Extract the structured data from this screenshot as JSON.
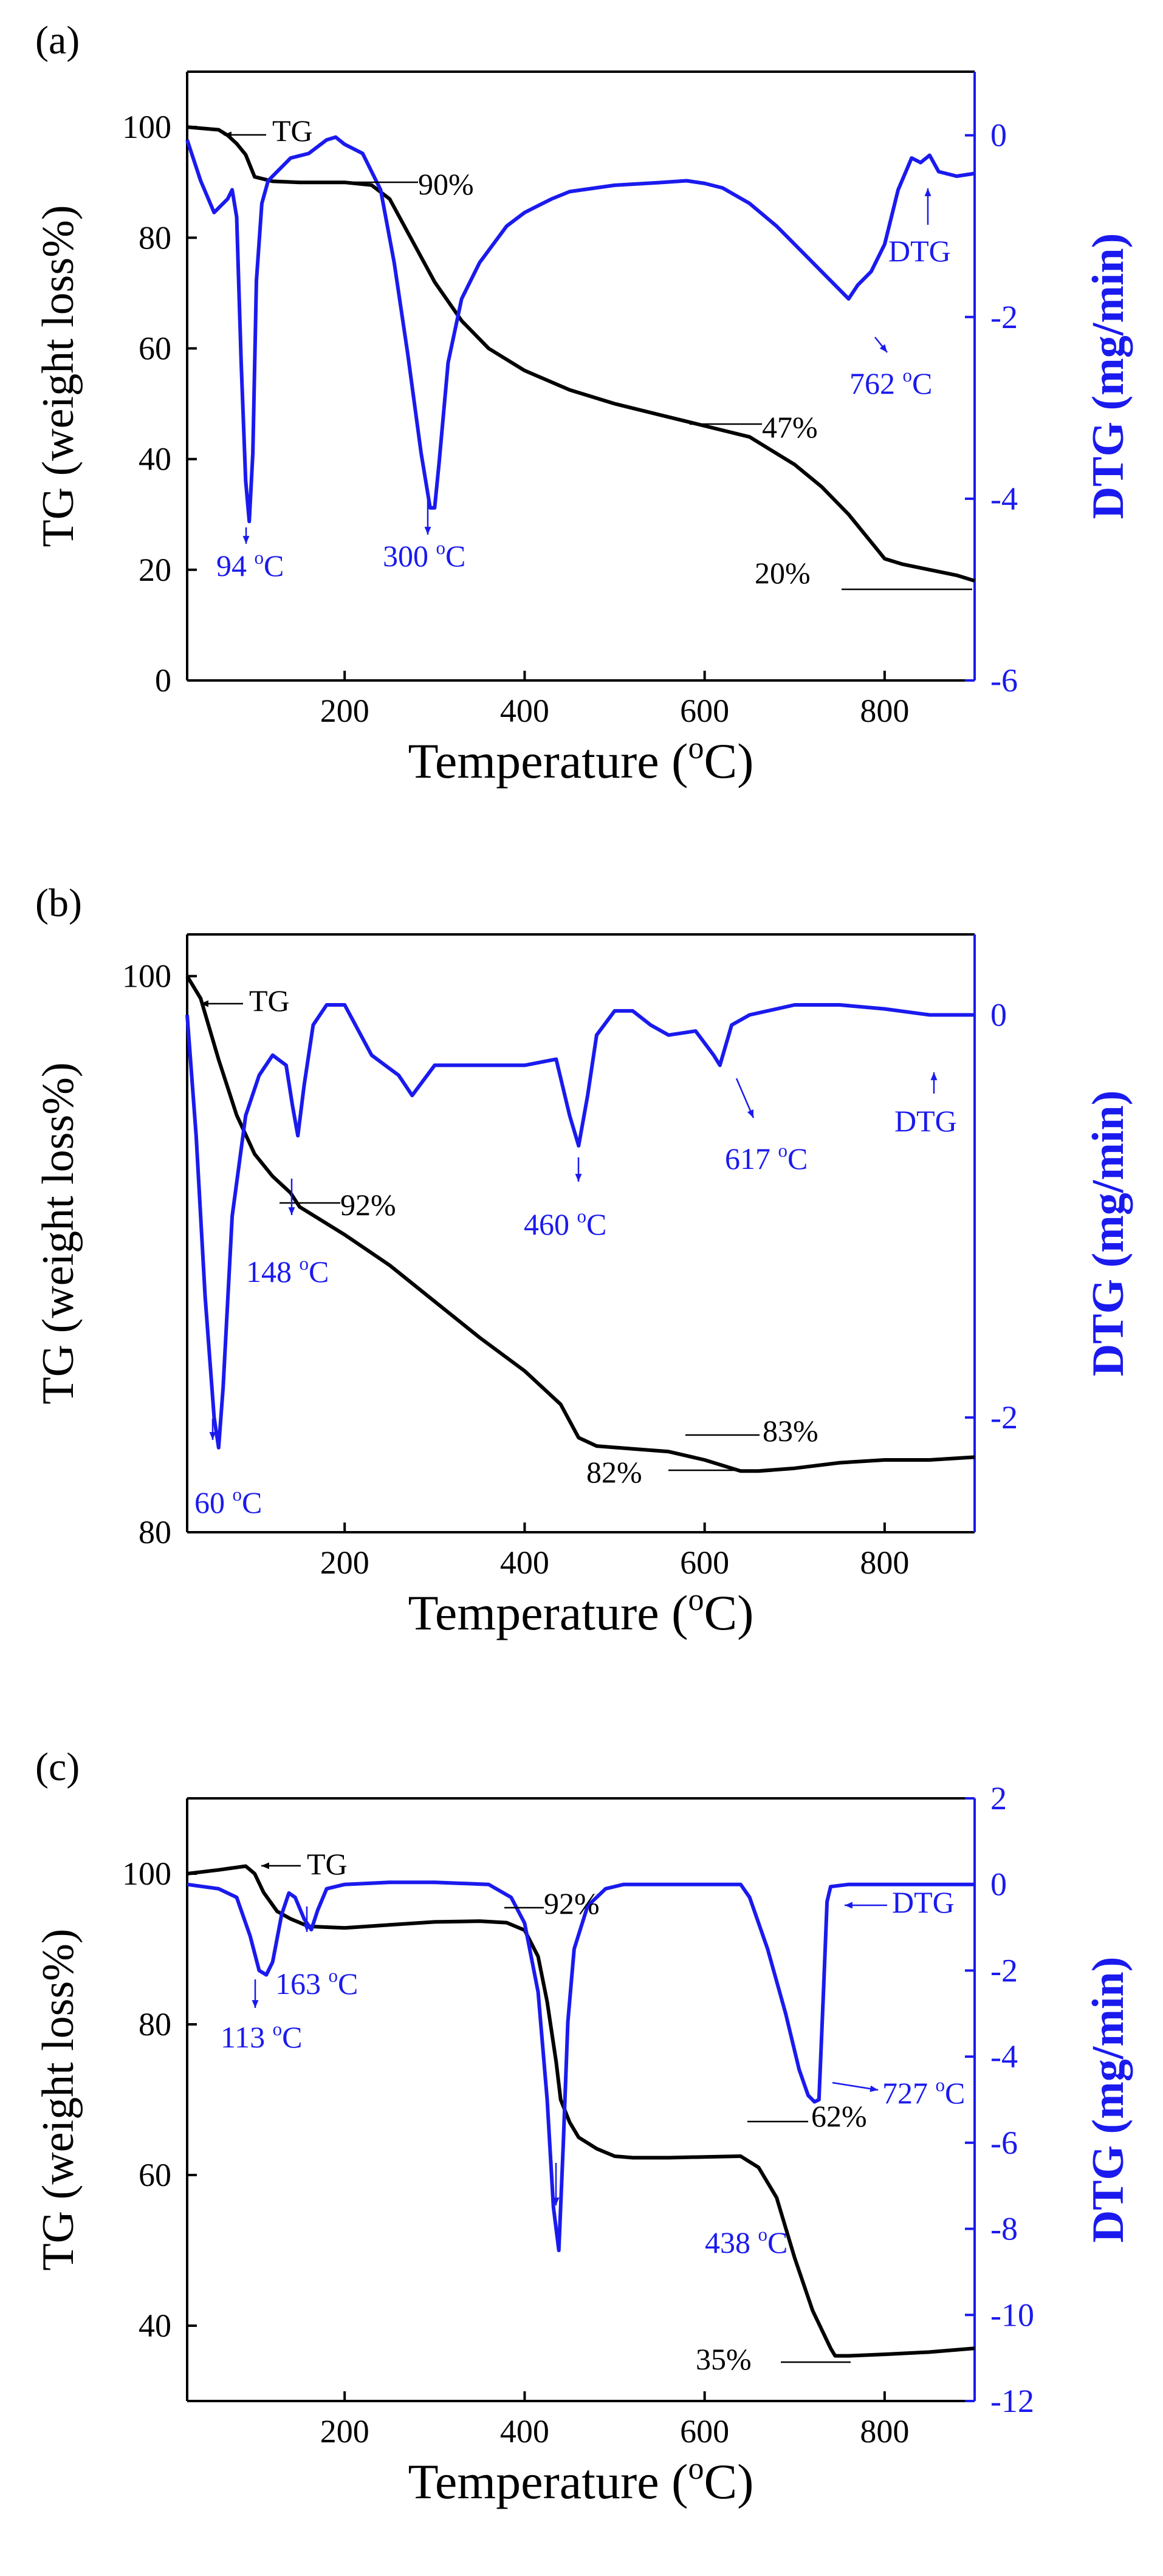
{
  "chart_data": [
    {
      "type": "line",
      "panel_label": "(a)",
      "xlabel": "Temperature (",
      "xlabel_sup": "o",
      "xlabel_tail": "C)",
      "ylabel_left": "TG (weight loss%)",
      "ylabel_right": "DTG (mg/min)",
      "xlim": [
        25,
        900
      ],
      "ylim_left": [
        0,
        110
      ],
      "ylim_right": [
        -6,
        0.7
      ],
      "xticks": [
        200,
        400,
        600,
        800
      ],
      "yticks_left": [
        0,
        20,
        40,
        60,
        80,
        100
      ],
      "yticks_right": [
        -6,
        -4,
        -2,
        0
      ],
      "series": [
        {
          "name": "TG",
          "axis": "left",
          "x": [
            25,
            60,
            70,
            80,
            90,
            100,
            120,
            150,
            200,
            230,
            250,
            270,
            300,
            330,
            360,
            400,
            450,
            500,
            550,
            600,
            650,
            700,
            730,
            760,
            790,
            800,
            820,
            850,
            880,
            900
          ],
          "y": [
            100,
            99.5,
            98.5,
            97,
            95,
            91,
            90.2,
            90,
            90,
            89.5,
            87,
            81,
            72,
            65,
            60,
            56,
            52.5,
            50,
            48,
            46,
            44,
            39,
            35,
            30,
            24,
            22,
            21,
            20,
            19,
            18
          ]
        },
        {
          "name": "DTG",
          "axis": "right",
          "x": [
            25,
            40,
            55,
            70,
            75,
            80,
            85,
            90,
            94,
            98,
            102,
            108,
            115,
            125,
            140,
            160,
            180,
            190,
            200,
            220,
            240,
            255,
            270,
            285,
            295,
            300,
            305,
            315,
            330,
            350,
            380,
            400,
            430,
            450,
            500,
            550,
            580,
            600,
            620,
            650,
            680,
            700,
            730,
            760,
            770,
            785,
            800,
            815,
            830,
            840,
            850,
            860,
            880,
            900
          ],
          "y": [
            -0.05,
            -0.5,
            -0.85,
            -0.7,
            -0.6,
            -0.9,
            -2.5,
            -3.8,
            -4.25,
            -3.5,
            -1.6,
            -0.75,
            -0.5,
            -0.4,
            -0.25,
            -0.2,
            -0.05,
            -0.02,
            -0.1,
            -0.2,
            -0.6,
            -1.4,
            -2.4,
            -3.5,
            -4.1,
            -4.1,
            -3.6,
            -2.5,
            -1.8,
            -1.4,
            -1.0,
            -0.85,
            -0.7,
            -0.62,
            -0.55,
            -0.52,
            -0.5,
            -0.53,
            -0.58,
            -0.75,
            -1.0,
            -1.2,
            -1.5,
            -1.8,
            -1.65,
            -1.5,
            -1.2,
            -0.6,
            -0.25,
            -0.3,
            -0.22,
            -0.4,
            -0.45,
            -0.42
          ]
        }
      ],
      "annotations": [
        {
          "text": "TG",
          "color": "black"
        },
        {
          "text": "90%",
          "color": "black"
        },
        {
          "text": "47%",
          "color": "black"
        },
        {
          "text": "20%",
          "color": "black"
        },
        {
          "text": "94 ",
          "sup": "o",
          "tail": "C",
          "color": "blue"
        },
        {
          "text": "300 ",
          "sup": "o",
          "tail": "C",
          "color": "blue"
        },
        {
          "text": "762 ",
          "sup": "o",
          "tail": "C",
          "color": "blue"
        },
        {
          "text": "DTG",
          "color": "blue"
        }
      ]
    },
    {
      "type": "line",
      "panel_label": "(b)",
      "xlabel": "Temperature (",
      "xlabel_sup": "o",
      "xlabel_tail": "C)",
      "ylabel_left": "TG (weight loss%)",
      "ylabel_right": "DTG (mg/min)",
      "xlim": [
        25,
        900
      ],
      "ylim_left": [
        80,
        101.5
      ],
      "ylim_right": [
        -2.57,
        0.4
      ],
      "xticks": [
        200,
        400,
        600,
        800
      ],
      "yticks_left": [
        80,
        100
      ],
      "yticks_right": [
        -2,
        0
      ],
      "series": [
        {
          "name": "TG",
          "axis": "left",
          "x": [
            25,
            40,
            60,
            80,
            100,
            120,
            140,
            150,
            170,
            200,
            250,
            300,
            350,
            400,
            440,
            460,
            480,
            520,
            560,
            600,
            640,
            660,
            700,
            750,
            800,
            850,
            900
          ],
          "y": [
            100,
            99.2,
            97,
            95,
            93.6,
            92.8,
            92.2,
            91.7,
            91.3,
            90.7,
            89.6,
            88.3,
            87,
            85.8,
            84.6,
            83.4,
            83.1,
            83,
            82.9,
            82.6,
            82.2,
            82.2,
            82.3,
            82.5,
            82.6,
            82.6,
            82.7
          ]
        },
        {
          "name": "DTG",
          "axis": "right",
          "x": [
            25,
            35,
            45,
            55,
            60,
            65,
            75,
            90,
            105,
            120,
            135,
            142,
            148,
            155,
            165,
            180,
            200,
            230,
            260,
            275,
            300,
            350,
            400,
            435,
            450,
            460,
            470,
            480,
            500,
            520,
            540,
            560,
            590,
            610,
            617,
            630,
            650,
            700,
            750,
            800,
            850,
            900
          ],
          "y": [
            0,
            -0.6,
            -1.4,
            -2.0,
            -2.15,
            -1.85,
            -1.0,
            -0.5,
            -0.3,
            -0.2,
            -0.25,
            -0.45,
            -0.6,
            -0.35,
            -0.05,
            0.05,
            0.05,
            -0.2,
            -0.3,
            -0.4,
            -0.25,
            -0.25,
            -0.25,
            -0.22,
            -0.5,
            -0.65,
            -0.4,
            -0.1,
            0.02,
            0.02,
            -0.05,
            -0.1,
            -0.08,
            -0.2,
            -0.25,
            -0.05,
            0.0,
            0.05,
            0.05,
            0.03,
            0.0,
            0.0
          ]
        }
      ],
      "annotations": [
        {
          "text": "TG",
          "color": "black"
        },
        {
          "text": "92%",
          "color": "black"
        },
        {
          "text": "83%",
          "color": "black"
        },
        {
          "text": "82%",
          "color": "black"
        },
        {
          "text": "60 ",
          "sup": "o",
          "tail": "C",
          "color": "blue"
        },
        {
          "text": "148 ",
          "sup": "o",
          "tail": "C",
          "color": "blue"
        },
        {
          "text": "460 ",
          "sup": "o",
          "tail": "C",
          "color": "blue"
        },
        {
          "text": "617 ",
          "sup": "o",
          "tail": "C",
          "color": "blue"
        },
        {
          "text": "DTG",
          "color": "blue"
        }
      ]
    },
    {
      "type": "line",
      "panel_label": "(c)",
      "xlabel": "Temperature (",
      "xlabel_sup": "o",
      "xlabel_tail": "C)",
      "ylabel_left": "TG (weight loss%)",
      "ylabel_right": "DTG (mg/min)",
      "xlim": [
        25,
        900
      ],
      "ylim_left": [
        30,
        110
      ],
      "ylim_right": [
        -12,
        2
      ],
      "xticks": [
        200,
        400,
        600,
        800
      ],
      "yticks_left": [
        40,
        60,
        80,
        100
      ],
      "yticks_right": [
        -12,
        -10,
        -8,
        -6,
        -4,
        -2,
        0,
        2
      ],
      "series": [
        {
          "name": "TG",
          "axis": "left",
          "x": [
            25,
            60,
            90,
            100,
            110,
            125,
            140,
            160,
            200,
            250,
            300,
            350,
            380,
            400,
            415,
            425,
            435,
            440,
            450,
            460,
            480,
            500,
            520,
            560,
            600,
            640,
            660,
            680,
            700,
            720,
            740,
            745,
            760,
            800,
            850,
            900
          ],
          "y": [
            100,
            100.5,
            101,
            100,
            97.5,
            95,
            94,
            93,
            92.8,
            93.2,
            93.6,
            93.7,
            93.5,
            92.5,
            89,
            83,
            75,
            70,
            67,
            65,
            63.5,
            62.5,
            62.3,
            62.3,
            62.4,
            62.5,
            61,
            57,
            49,
            42,
            37,
            36,
            36,
            36.2,
            36.5,
            37
          ]
        },
        {
          "name": "DTG",
          "axis": "right",
          "x": [
            25,
            60,
            80,
            95,
            105,
            113,
            120,
            130,
            138,
            145,
            155,
            163,
            170,
            180,
            200,
            250,
            300,
            360,
            385,
            400,
            415,
            425,
            432,
            438,
            443,
            448,
            455,
            470,
            490,
            510,
            550,
            600,
            640,
            650,
            670,
            690,
            705,
            715,
            722,
            727,
            732,
            736,
            740,
            760,
            800,
            850,
            900
          ],
          "y": [
            0,
            -0.1,
            -0.3,
            -1.2,
            -2.0,
            -2.1,
            -1.8,
            -0.7,
            -0.2,
            -0.3,
            -0.8,
            -1.05,
            -0.6,
            -0.1,
            0,
            0.05,
            0.05,
            0,
            -0.3,
            -0.9,
            -2.5,
            -5.0,
            -7.5,
            -8.5,
            -6.0,
            -3.2,
            -1.5,
            -0.5,
            -0.1,
            0,
            0,
            0,
            0,
            -0.3,
            -1.5,
            -3.0,
            -4.3,
            -4.9,
            -5.05,
            -5.0,
            -2.5,
            -0.4,
            -0.05,
            0,
            0,
            0,
            0
          ]
        }
      ],
      "annotations": [
        {
          "text": "TG",
          "color": "black"
        },
        {
          "text": "92%",
          "color": "black"
        },
        {
          "text": "62%",
          "color": "black"
        },
        {
          "text": "35%",
          "color": "black"
        },
        {
          "text": "113 ",
          "sup": "o",
          "tail": "C",
          "color": "blue"
        },
        {
          "text": "163 ",
          "sup": "o",
          "tail": "C",
          "color": "blue"
        },
        {
          "text": "438 ",
          "sup": "o",
          "tail": "C",
          "color": "blue"
        },
        {
          "text": "727 ",
          "sup": "o",
          "tail": "C",
          "color": "blue"
        },
        {
          "text": "DTG",
          "color": "blue"
        }
      ]
    }
  ],
  "colors": {
    "tg": "#000000",
    "dtg": "#1a1aee"
  }
}
